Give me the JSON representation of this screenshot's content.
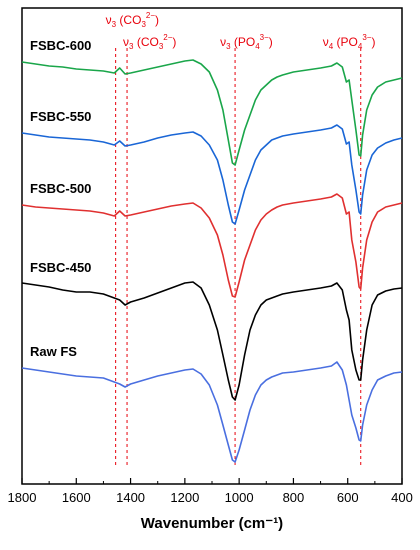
{
  "chart_data": {
    "type": "line",
    "xlabel": "Wavenumber (cm⁻¹)",
    "xlim": [
      1800,
      400
    ],
    "x_reversed": true,
    "x_ticks": [
      1800,
      1600,
      1400,
      1200,
      1000,
      800,
      600,
      400
    ],
    "y_ticks_shown": false,
    "grid": false,
    "series": [
      {
        "name": "FSBC-600",
        "color": "#1aa64a",
        "points": [
          [
            1800,
            62
          ],
          [
            1750,
            64
          ],
          [
            1700,
            66
          ],
          [
            1650,
            67
          ],
          [
            1600,
            69
          ],
          [
            1550,
            70
          ],
          [
            1500,
            71
          ],
          [
            1460,
            73
          ],
          [
            1440,
            68
          ],
          [
            1420,
            74
          ],
          [
            1400,
            73
          ],
          [
            1350,
            70
          ],
          [
            1300,
            67
          ],
          [
            1250,
            64
          ],
          [
            1200,
            61
          ],
          [
            1170,
            60
          ],
          [
            1140,
            64
          ],
          [
            1110,
            72
          ],
          [
            1080,
            90
          ],
          [
            1060,
            110
          ],
          [
            1040,
            140
          ],
          [
            1025,
            163
          ],
          [
            1015,
            165
          ],
          [
            1000,
            150
          ],
          [
            980,
            130
          ],
          [
            960,
            115
          ],
          [
            940,
            100
          ],
          [
            920,
            90
          ],
          [
            900,
            85
          ],
          [
            880,
            80
          ],
          [
            860,
            77
          ],
          [
            840,
            75
          ],
          [
            800,
            72
          ],
          [
            750,
            70
          ],
          [
            700,
            68
          ],
          [
            660,
            66
          ],
          [
            640,
            63
          ],
          [
            620,
            67
          ],
          [
            605,
            82
          ],
          [
            595,
            80
          ],
          [
            585,
            100
          ],
          [
            570,
            130
          ],
          [
            558,
            155
          ],
          [
            552,
            156
          ],
          [
            545,
            135
          ],
          [
            530,
            110
          ],
          [
            510,
            95
          ],
          [
            490,
            87
          ],
          [
            460,
            82
          ],
          [
            430,
            80
          ],
          [
            400,
            78
          ]
        ]
      },
      {
        "name": "FSBC-550",
        "color": "#1a66d6",
        "points": [
          [
            1800,
            133
          ],
          [
            1750,
            135
          ],
          [
            1700,
            137
          ],
          [
            1650,
            138
          ],
          [
            1600,
            139
          ],
          [
            1550,
            140
          ],
          [
            1500,
            142
          ],
          [
            1460,
            145
          ],
          [
            1440,
            141
          ],
          [
            1420,
            146
          ],
          [
            1400,
            145
          ],
          [
            1350,
            142
          ],
          [
            1300,
            138
          ],
          [
            1250,
            135
          ],
          [
            1200,
            133
          ],
          [
            1170,
            132
          ],
          [
            1140,
            136
          ],
          [
            1110,
            145
          ],
          [
            1080,
            160
          ],
          [
            1060,
            180
          ],
          [
            1040,
            205
          ],
          [
            1025,
            222
          ],
          [
            1015,
            224
          ],
          [
            1000,
            210
          ],
          [
            980,
            190
          ],
          [
            960,
            175
          ],
          [
            940,
            160
          ],
          [
            920,
            150
          ],
          [
            900,
            145
          ],
          [
            880,
            140
          ],
          [
            860,
            138
          ],
          [
            840,
            136
          ],
          [
            800,
            134
          ],
          [
            750,
            132
          ],
          [
            700,
            130
          ],
          [
            660,
            128
          ],
          [
            640,
            125
          ],
          [
            620,
            129
          ],
          [
            605,
            144
          ],
          [
            595,
            142
          ],
          [
            585,
            165
          ],
          [
            570,
            190
          ],
          [
            558,
            212
          ],
          [
            552,
            214
          ],
          [
            545,
            195
          ],
          [
            530,
            170
          ],
          [
            510,
            155
          ],
          [
            490,
            148
          ],
          [
            460,
            143
          ],
          [
            430,
            140
          ],
          [
            400,
            138
          ]
        ]
      },
      {
        "name": "FSBC-500",
        "color": "#e03030",
        "points": [
          [
            1800,
            205
          ],
          [
            1750,
            207
          ],
          [
            1700,
            208
          ],
          [
            1650,
            209
          ],
          [
            1600,
            210
          ],
          [
            1550,
            211
          ],
          [
            1500,
            213
          ],
          [
            1460,
            216
          ],
          [
            1440,
            211
          ],
          [
            1420,
            216
          ],
          [
            1400,
            215
          ],
          [
            1350,
            212
          ],
          [
            1300,
            209
          ],
          [
            1250,
            206
          ],
          [
            1200,
            204
          ],
          [
            1170,
            203
          ],
          [
            1140,
            208
          ],
          [
            1110,
            218
          ],
          [
            1080,
            235
          ],
          [
            1060,
            255
          ],
          [
            1040,
            280
          ],
          [
            1025,
            296
          ],
          [
            1015,
            297
          ],
          [
            1000,
            282
          ],
          [
            980,
            260
          ],
          [
            960,
            245
          ],
          [
            940,
            230
          ],
          [
            920,
            220
          ],
          [
            900,
            214
          ],
          [
            880,
            210
          ],
          [
            860,
            207
          ],
          [
            840,
            205
          ],
          [
            800,
            203
          ],
          [
            750,
            201
          ],
          [
            700,
            199
          ],
          [
            660,
            197
          ],
          [
            640,
            194
          ],
          [
            620,
            198
          ],
          [
            605,
            214
          ],
          [
            595,
            212
          ],
          [
            585,
            240
          ],
          [
            570,
            262
          ],
          [
            558,
            287
          ],
          [
            552,
            289
          ],
          [
            545,
            268
          ],
          [
            530,
            240
          ],
          [
            510,
            222
          ],
          [
            490,
            212
          ],
          [
            460,
            207
          ],
          [
            430,
            205
          ],
          [
            400,
            203
          ]
        ]
      },
      {
        "name": "FSBC-450",
        "color": "#000000",
        "points": [
          [
            1800,
            283
          ],
          [
            1750,
            285
          ],
          [
            1700,
            287
          ],
          [
            1650,
            290
          ],
          [
            1600,
            292
          ],
          [
            1550,
            292
          ],
          [
            1500,
            294
          ],
          [
            1460,
            298
          ],
          [
            1440,
            300
          ],
          [
            1420,
            305
          ],
          [
            1400,
            302
          ],
          [
            1350,
            298
          ],
          [
            1300,
            293
          ],
          [
            1250,
            288
          ],
          [
            1200,
            283
          ],
          [
            1170,
            282
          ],
          [
            1140,
            288
          ],
          [
            1110,
            305
          ],
          [
            1080,
            330
          ],
          [
            1060,
            355
          ],
          [
            1040,
            380
          ],
          [
            1025,
            397
          ],
          [
            1015,
            400
          ],
          [
            1000,
            385
          ],
          [
            980,
            355
          ],
          [
            960,
            330
          ],
          [
            940,
            315
          ],
          [
            920,
            305
          ],
          [
            900,
            300
          ],
          [
            880,
            298
          ],
          [
            860,
            296
          ],
          [
            840,
            294
          ],
          [
            800,
            292
          ],
          [
            750,
            290
          ],
          [
            700,
            288
          ],
          [
            660,
            286
          ],
          [
            640,
            283
          ],
          [
            620,
            290
          ],
          [
            605,
            310
          ],
          [
            595,
            320
          ],
          [
            585,
            350
          ],
          [
            570,
            370
          ],
          [
            558,
            380
          ],
          [
            552,
            380
          ],
          [
            545,
            360
          ],
          [
            530,
            330
          ],
          [
            510,
            305
          ],
          [
            490,
            295
          ],
          [
            460,
            291
          ],
          [
            430,
            289
          ],
          [
            400,
            288
          ]
        ]
      },
      {
        "name": "Raw FS",
        "color": "#4a6fe0",
        "points": [
          [
            1800,
            368
          ],
          [
            1750,
            370
          ],
          [
            1700,
            372
          ],
          [
            1650,
            374
          ],
          [
            1600,
            376
          ],
          [
            1550,
            377
          ],
          [
            1500,
            378
          ],
          [
            1460,
            382
          ],
          [
            1440,
            384
          ],
          [
            1420,
            387
          ],
          [
            1400,
            384
          ],
          [
            1350,
            380
          ],
          [
            1300,
            376
          ],
          [
            1250,
            373
          ],
          [
            1200,
            370
          ],
          [
            1170,
            369
          ],
          [
            1140,
            374
          ],
          [
            1110,
            385
          ],
          [
            1080,
            405
          ],
          [
            1060,
            425
          ],
          [
            1040,
            445
          ],
          [
            1025,
            460
          ],
          [
            1015,
            462
          ],
          [
            1000,
            450
          ],
          [
            980,
            430
          ],
          [
            960,
            410
          ],
          [
            940,
            395
          ],
          [
            920,
            385
          ],
          [
            900,
            380
          ],
          [
            880,
            377
          ],
          [
            860,
            375
          ],
          [
            840,
            373
          ],
          [
            800,
            372
          ],
          [
            750,
            370
          ],
          [
            700,
            368
          ],
          [
            660,
            366
          ],
          [
            640,
            362
          ],
          [
            620,
            370
          ],
          [
            605,
            385
          ],
          [
            595,
            400
          ],
          [
            585,
            415
          ],
          [
            570,
            428
          ],
          [
            558,
            440
          ],
          [
            552,
            441
          ],
          [
            545,
            425
          ],
          [
            530,
            405
          ],
          [
            510,
            390
          ],
          [
            490,
            380
          ],
          [
            460,
            376
          ],
          [
            430,
            373
          ],
          [
            400,
            372
          ]
        ]
      }
    ],
    "reference_lines": [
      {
        "x": 1455,
        "label_main": "ν",
        "label_sub": "3",
        "label_rest": " (CO",
        "label_sub2": "3",
        "label_sup": "2−",
        "label_end": ")"
      },
      {
        "x": 1413,
        "label_main": "ν",
        "label_sub": "3",
        "label_rest": " (CO",
        "label_sub2": "3",
        "label_sup": "2−",
        "label_end": ")"
      },
      {
        "x": 1015,
        "label_main": "ν",
        "label_sub": "3",
        "label_rest": " (PO",
        "label_sub2": "4",
        "label_sup": "3−",
        "label_end": ")"
      },
      {
        "x": 552,
        "label_main": "ν",
        "label_sub": "4",
        "label_rest": " (PO",
        "label_sub2": "4",
        "label_sup": "3−",
        "label_end": ")"
      }
    ],
    "colors": {
      "reference": "#e8000b",
      "axis": "#000000"
    }
  }
}
